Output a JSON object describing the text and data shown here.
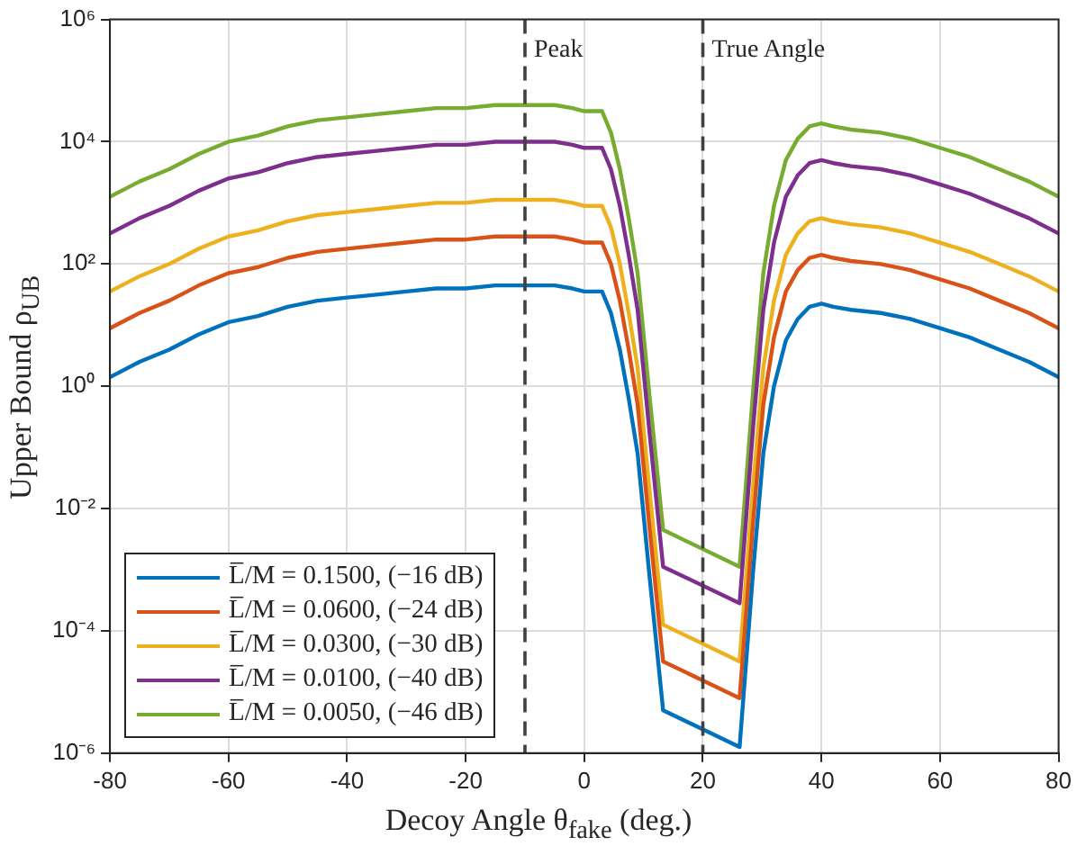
{
  "chart_data": {
    "type": "line",
    "xlabel": "Decoy Angle θ$_{fake}$ (deg.)",
    "ylabel": "Upper Bound ρ$_{UB}$",
    "x": [
      -80,
      -75,
      -70,
      -65,
      -60,
      -55,
      -50,
      -45,
      -40,
      -35,
      -30,
      -25,
      -20,
      -15,
      -10,
      -5,
      -2,
      0,
      3,
      4.5,
      6,
      7.5,
      9,
      11,
      13.3,
      26.2,
      28.5,
      30.2,
      32,
      34,
      36,
      38,
      40,
      42,
      45,
      50,
      55,
      60,
      65,
      70,
      75,
      80
    ],
    "series": [
      {
        "name": "L̅/M = 0.1500, (−16 dB)",
        "color": "#0072bd",
        "values": [
          1.41,
          2.51,
          3.98,
          7.08,
          11.2,
          14.1,
          20.0,
          25.1,
          28.2,
          31.6,
          35.5,
          39.8,
          39.8,
          44.7,
          44.7,
          44.7,
          39.8,
          35.5,
          35.5,
          15.8,
          3.98,
          0.631,
          0.0794,
          0.000794,
          5.01e-06,
          1.26e-06,
          0.001,
          0.0794,
          1,
          5.62,
          12.6,
          20.0,
          22.4,
          20.0,
          17.8,
          15.8,
          12.6,
          8.91,
          6.31,
          3.98,
          2.51,
          1.41
        ]
      },
      {
        "name": "L̅/M = 0.0600, (−24 dB)",
        "color": "#d95319",
        "values": [
          8.91,
          15.8,
          25.1,
          44.7,
          70.8,
          89.1,
          126,
          158,
          178,
          200,
          224,
          251,
          251,
          282,
          282,
          282,
          251,
          224,
          224,
          100,
          25.1,
          3.98,
          0.501,
          0.00501,
          3.16e-05,
          7.94e-06,
          0.00631,
          0.501,
          6.31,
          35.5,
          79.4,
          126,
          141,
          126,
          112,
          100,
          79.4,
          56.2,
          39.8,
          25.1,
          15.8,
          8.91
        ]
      },
      {
        "name": "L̅/M = 0.0300, (−30 dB)",
        "color": "#edb120",
        "values": [
          35.5,
          63.1,
          100,
          178,
          282,
          355,
          501,
          631,
          708,
          794,
          891,
          1000,
          1000,
          1120,
          1120,
          1120,
          1000,
          891,
          891,
          398,
          100,
          15.8,
          2.0,
          0.02,
          0.000126,
          3.16e-05,
          0.0251,
          2.0,
          25.1,
          141,
          316,
          501,
          562,
          501,
          447,
          398,
          316,
          224,
          158,
          100,
          63.1,
          35.5
        ]
      },
      {
        "name": "L̅/M = 0.0100, (−40 dB)",
        "color": "#7e2f8e",
        "values": [
          316,
          562,
          891,
          1580,
          2510,
          3160,
          4470,
          5620,
          6310,
          7080,
          7940,
          8910,
          8910,
          10000,
          10000,
          10000,
          8910,
          7940,
          7940,
          3550,
          891,
          141,
          17.8,
          0.178,
          0.00112,
          0.000282,
          0.224,
          17.8,
          224,
          1260,
          2820,
          4470,
          5010,
          4470,
          3980,
          3550,
          2820,
          2000,
          1410,
          891,
          562,
          316
        ]
      },
      {
        "name": "L̅/M = 0.0050, (−46 dB)",
        "color": "#77ac30",
        "values": [
          1260,
          2240,
          3550,
          6310,
          10000,
          12600,
          17800,
          22400,
          25100,
          28200,
          31600,
          35500,
          35500,
          39800,
          39800,
          39800,
          35500,
          31600,
          31600,
          14100,
          3550,
          562,
          70.8,
          0.708,
          0.00447,
          0.00112,
          0.891,
          70.8,
          891,
          5010,
          11200,
          17800,
          20000,
          17800,
          15800,
          14100,
          11200,
          7940,
          5620,
          3550,
          2240,
          1260
        ]
      }
    ],
    "xlim": [
      -80,
      80
    ],
    "xticks": [
      -80,
      -60,
      -40,
      -20,
      0,
      20,
      40,
      60,
      80
    ],
    "ylim": [
      1e-06,
      1000000.0
    ],
    "yticks": [
      {
        "value": 1e-06,
        "label": "10⁻⁶"
      },
      {
        "value": 0.0001,
        "label": "10⁻⁴"
      },
      {
        "value": 0.01,
        "label": "10⁻²"
      },
      {
        "value": 1,
        "label": "10⁰"
      },
      {
        "value": 100,
        "label": "10²"
      },
      {
        "value": 10000,
        "label": "10⁴"
      },
      {
        "value": 1000000,
        "label": "10⁶"
      }
    ],
    "log": "y",
    "grid": true,
    "legend": "bottom left",
    "ref_lines": [
      {
        "axis": "x",
        "value": -10,
        "label": "Peak",
        "color": "#404040",
        "line_style": "dashed"
      },
      {
        "axis": "x",
        "value": 20,
        "label": "True Angle",
        "color": "#404040",
        "line_style": "dashed"
      }
    ]
  }
}
